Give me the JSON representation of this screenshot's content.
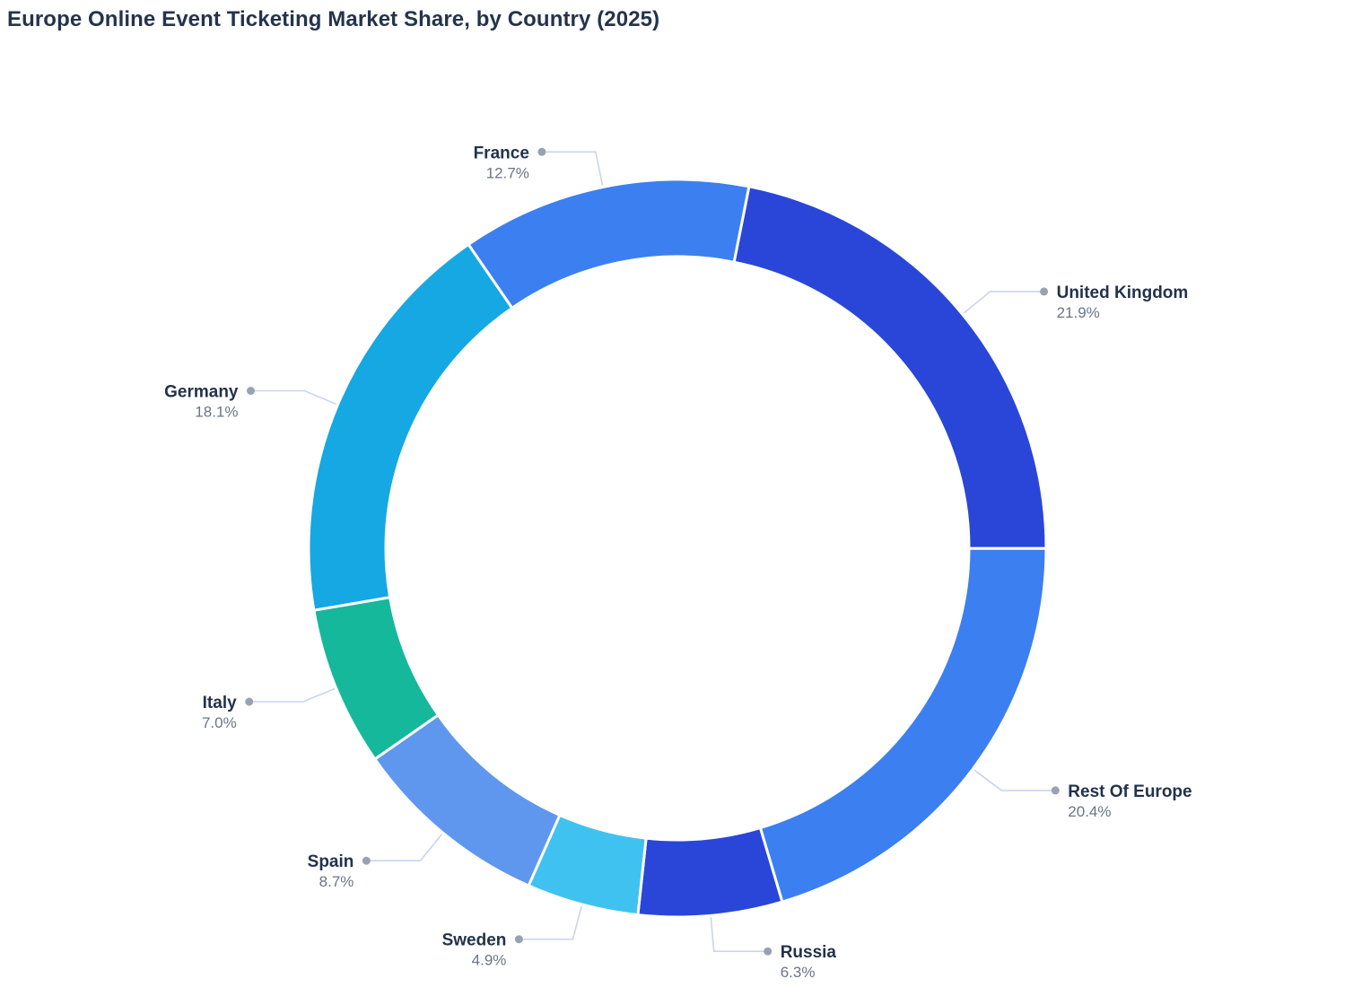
{
  "chart_data": {
    "type": "pie",
    "subtype": "donut",
    "title": "Europe Online Event Ticketing Market Share, by Country (2025)",
    "unit": "%",
    "start_angle_deg": 11.2,
    "clockwise": true,
    "legend_position": "none",
    "labels_style": "outside-with-leader-lines",
    "slices": [
      {
        "label": "United Kingdom",
        "value": 21.9,
        "pct_text": "21.9%",
        "color": "#2946d9"
      },
      {
        "label": "Rest Of Europe",
        "value": 20.4,
        "pct_text": "20.4%",
        "color": "#3c7ff0"
      },
      {
        "label": "Russia",
        "value": 6.3,
        "pct_text": "6.3%",
        "color": "#2946d9"
      },
      {
        "label": "Sweden",
        "value": 4.9,
        "pct_text": "4.9%",
        "color": "#40c2f1"
      },
      {
        "label": "Spain",
        "value": 8.7,
        "pct_text": "8.7%",
        "color": "#5f97ef"
      },
      {
        "label": "Italy",
        "value": 7.0,
        "pct_text": "7.0%",
        "color": "#16b89c"
      },
      {
        "label": "Germany",
        "value": 18.1,
        "pct_text": "18.1%",
        "color": "#15a8e3"
      },
      {
        "label": "France",
        "value": 12.7,
        "pct_text": "12.7%",
        "color": "#3c7ff0"
      }
    ],
    "colors_meta": {
      "title_text": "#24344d",
      "label_text": "#22324b",
      "pct_text": "#6b7585",
      "leader_line": "#c9d4f2",
      "leader_dot": "#98a2b3",
      "background": "#ffffff"
    }
  }
}
